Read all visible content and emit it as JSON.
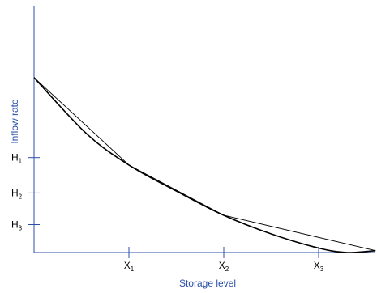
{
  "chart_data": {
    "type": "line",
    "title": "",
    "xlabel": "Storage level",
    "ylabel": "Inflow rate",
    "grid": false,
    "legend": "none",
    "x_ticks": [
      {
        "base": "X",
        "sub": "1"
      },
      {
        "base": "X",
        "sub": "2"
      },
      {
        "base": "X",
        "sub": "3"
      }
    ],
    "y_ticks": [
      {
        "base": "H",
        "sub": "1"
      },
      {
        "base": "H",
        "sub": "2"
      },
      {
        "base": "H",
        "sub": "3"
      }
    ],
    "series": [
      {
        "style": "curve",
        "points": [
          {
            "x": 0,
            "y": 4.7
          },
          {
            "x": 0.55,
            "y": 3.2
          },
          {
            "x": 1,
            "y": 2.35
          },
          {
            "x": 1.5,
            "y": 1.65
          },
          {
            "x": 2,
            "y": 1.0
          },
          {
            "x": 2.5,
            "y": 0.5
          },
          {
            "x": 3,
            "y": 0.12
          },
          {
            "x": 3.3,
            "y": 0.0
          },
          {
            "x": 3.6,
            "y": 0.05
          }
        ]
      },
      {
        "style": "piecewise-linear",
        "points": [
          {
            "x": 0,
            "y": 4.7
          },
          {
            "x": 1,
            "y": 2.35
          },
          {
            "x": 2,
            "y": 1.0
          },
          {
            "x": 3.6,
            "y": 0.05
          }
        ]
      }
    ]
  },
  "colors": {
    "axis": "#2b4fa8",
    "axis_label": "#2b4fa8",
    "curve": "#000000",
    "tick_text": "#000000"
  }
}
